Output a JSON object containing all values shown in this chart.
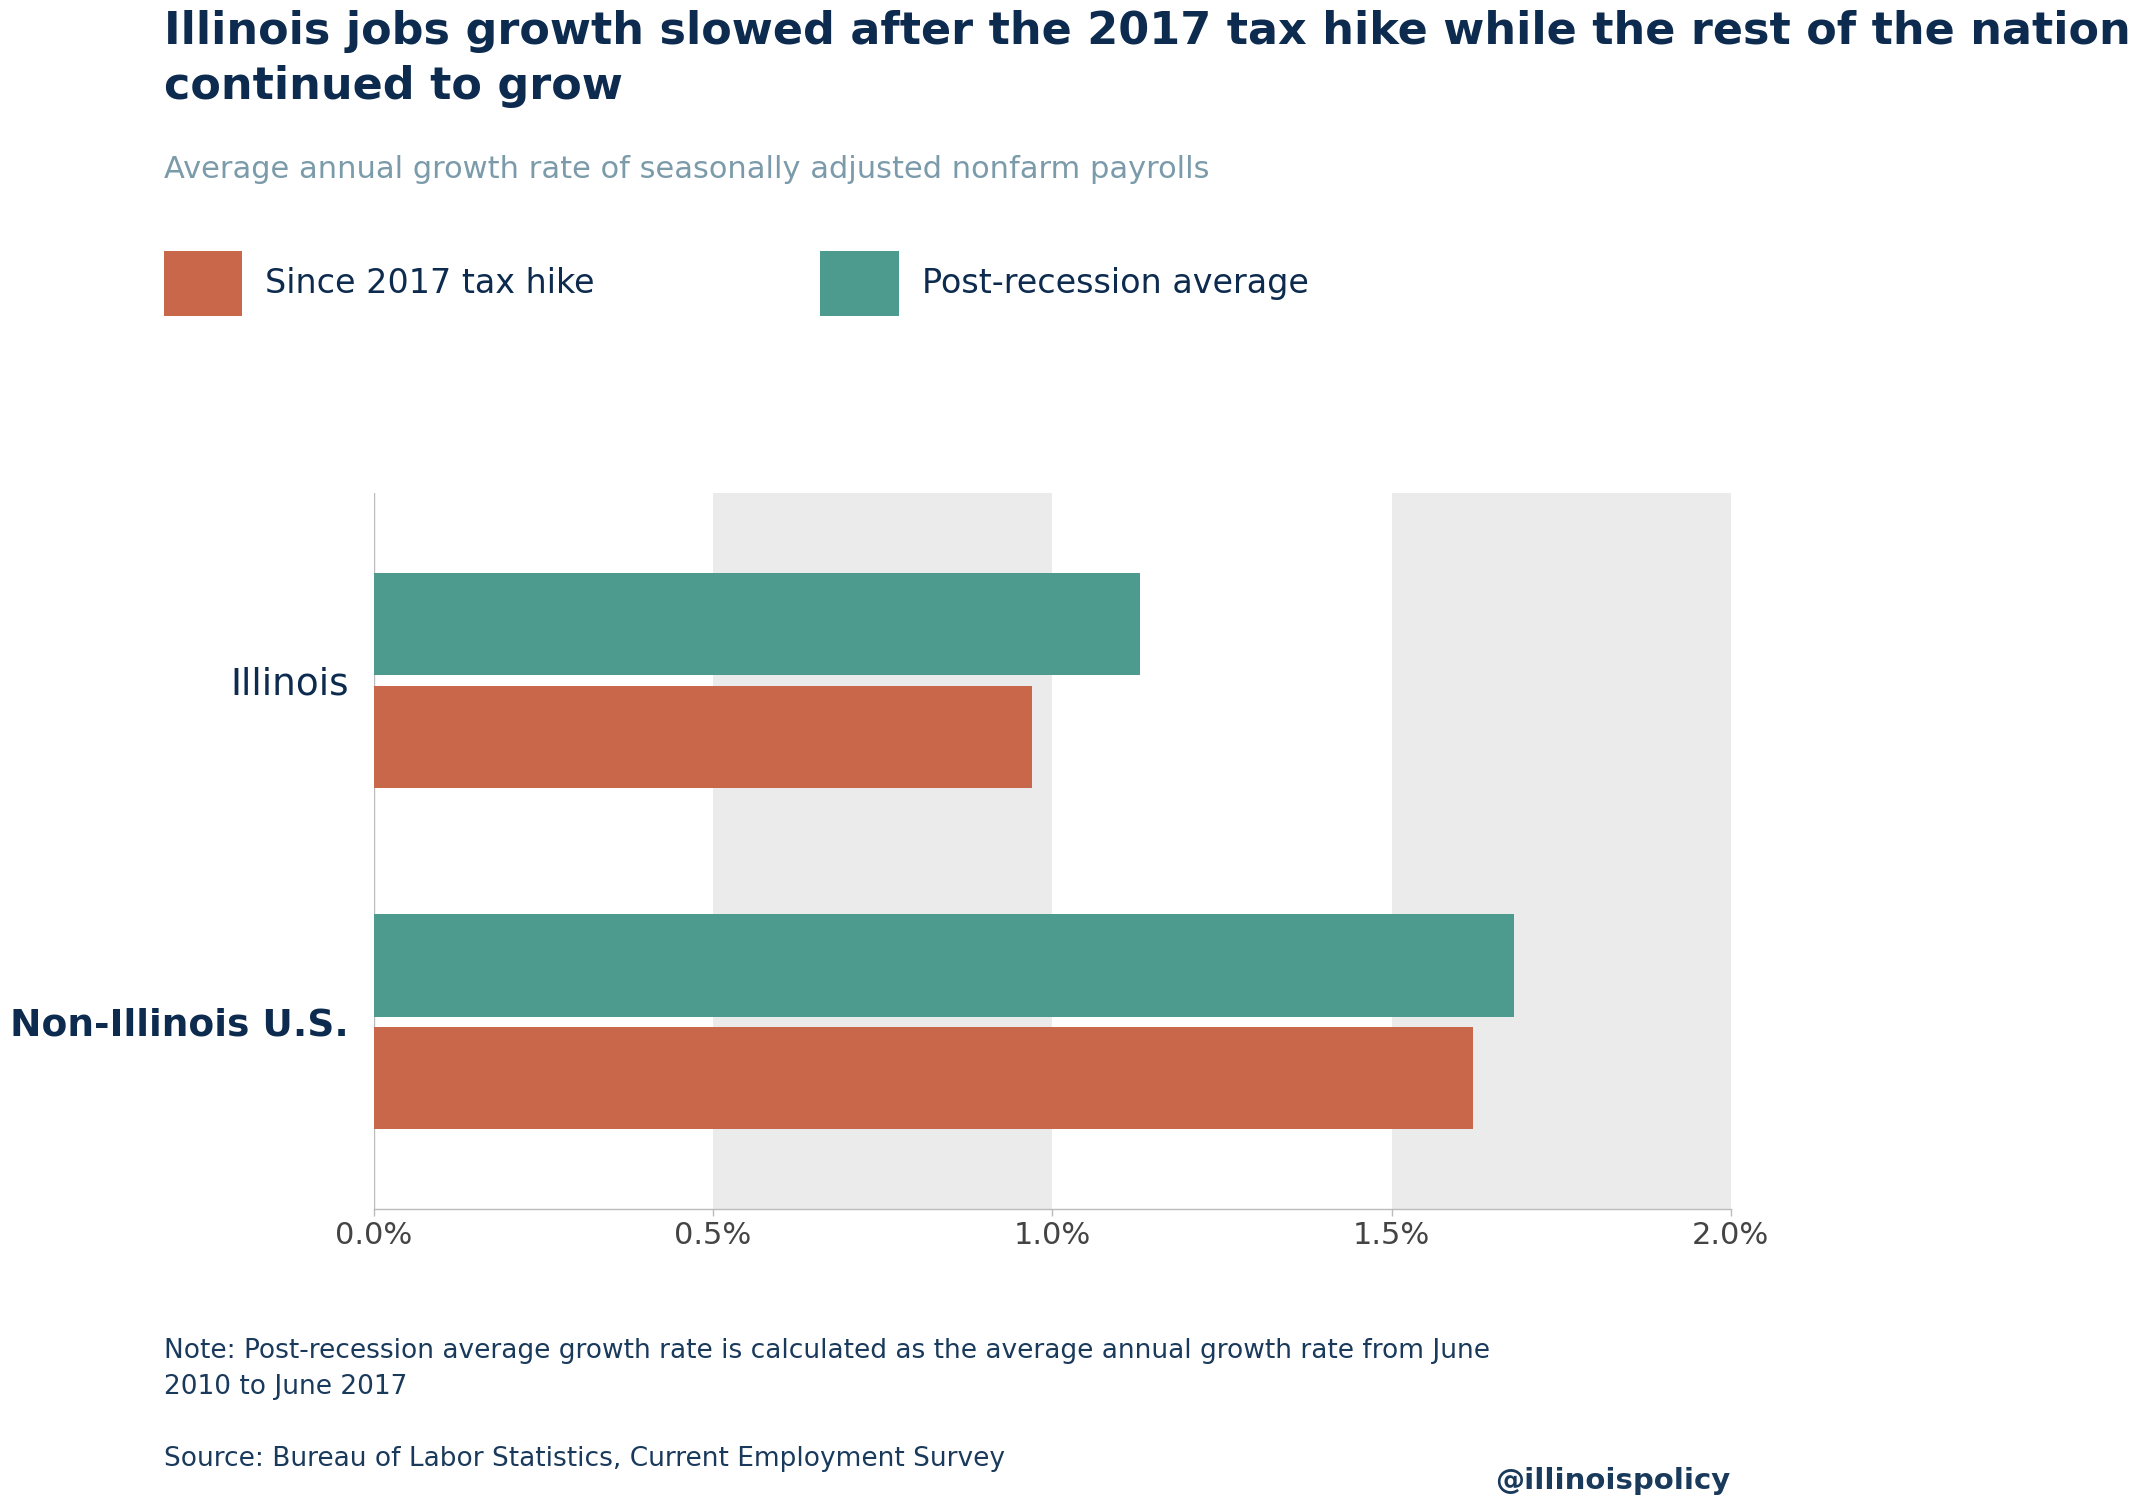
{
  "title": "Illinois jobs growth slowed after the 2017 tax hike while the rest of the nation\ncontinued to grow",
  "subtitle": "Average annual growth rate of seasonally adjusted nonfarm payrolls",
  "categories": [
    "Illinois",
    "Non-Illinois U.S."
  ],
  "since_tax_hike": [
    0.0097,
    0.0162
  ],
  "post_recession": [
    0.0113,
    0.0168
  ],
  "color_tax_hike": "#C8674A",
  "color_post_recession": "#4D9A8E",
  "xlim": [
    0.0,
    0.02
  ],
  "xticks": [
    0.0,
    0.005,
    0.01,
    0.015,
    0.02
  ],
  "xtick_labels": [
    "0.0%",
    "0.5%",
    "1.0%",
    "1.5%",
    "2.0%"
  ],
  "legend_label_tax": "Since 2017 tax hike",
  "legend_label_post": "Post-recession average",
  "note": "Note: Post-recession average growth rate is calculated as the average annual growth rate from June\n2010 to June 2017",
  "source": "Source: Bureau of Labor Statistics, Current Employment Survey",
  "handle": "@illinoispolicy",
  "bg_color": "#FFFFFF",
  "stripe_color": "#EBEBEB",
  "title_color": "#0D2B4E",
  "subtitle_color": "#7B9BAA",
  "label_color": "#0D2B4E",
  "tick_color": "#444444",
  "note_color": "#1A3A5C",
  "bar_height": 0.3
}
